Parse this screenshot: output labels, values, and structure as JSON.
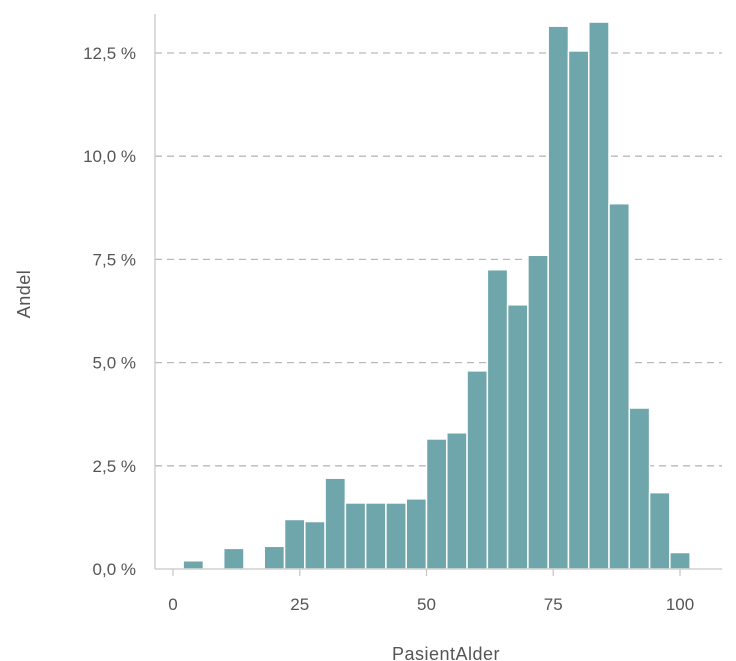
{
  "chart_data": {
    "type": "bar",
    "xlabel": "PasientAlder",
    "ylabel": "Andel",
    "xlim": [
      -2.5,
      107.5
    ],
    "ylim": [
      0,
      13.5
    ],
    "x_ticks": [
      {
        "value": 0,
        "label": "0"
      },
      {
        "value": 25,
        "label": "25"
      },
      {
        "value": 50,
        "label": "50"
      },
      {
        "value": 75,
        "label": "75"
      },
      {
        "value": 100,
        "label": "100"
      }
    ],
    "y_ticks": [
      {
        "value": 0,
        "label": "0,0 %"
      },
      {
        "value": 2.5,
        "label": "2,5 %"
      },
      {
        "value": 5,
        "label": "5,0 %"
      },
      {
        "value": 7.5,
        "label": "7,5 %"
      },
      {
        "value": 10,
        "label": "10,0 %"
      },
      {
        "value": 12.5,
        "label": "12,5 %"
      }
    ],
    "grid": true,
    "bin_width": 4,
    "bar_color": "#6ea6ab",
    "bins": [
      {
        "start": 2,
        "end": 6,
        "value": 0.2
      },
      {
        "start": 10,
        "end": 14,
        "value": 0.5
      },
      {
        "start": 18,
        "end": 22,
        "value": 0.55
      },
      {
        "start": 22,
        "end": 26,
        "value": 1.2
      },
      {
        "start": 26,
        "end": 30,
        "value": 1.15
      },
      {
        "start": 30,
        "end": 34,
        "value": 2.2
      },
      {
        "start": 34,
        "end": 38,
        "value": 1.6
      },
      {
        "start": 38,
        "end": 42,
        "value": 1.6
      },
      {
        "start": 42,
        "end": 46,
        "value": 1.6
      },
      {
        "start": 46,
        "end": 50,
        "value": 1.7
      },
      {
        "start": 50,
        "end": 54,
        "value": 3.15
      },
      {
        "start": 54,
        "end": 58,
        "value": 3.3
      },
      {
        "start": 58,
        "end": 62,
        "value": 4.8
      },
      {
        "start": 62,
        "end": 66,
        "value": 7.25
      },
      {
        "start": 66,
        "end": 70,
        "value": 6.4
      },
      {
        "start": 70,
        "end": 74,
        "value": 7.6
      },
      {
        "start": 74,
        "end": 78,
        "value": 13.15
      },
      {
        "start": 78,
        "end": 82,
        "value": 12.55
      },
      {
        "start": 82,
        "end": 86,
        "value": 13.25
      },
      {
        "start": 86,
        "end": 90,
        "value": 8.85
      },
      {
        "start": 90,
        "end": 94,
        "value": 3.9
      },
      {
        "start": 94,
        "end": 98,
        "value": 1.85
      },
      {
        "start": 98,
        "end": 102,
        "value": 0.4
      }
    ]
  }
}
